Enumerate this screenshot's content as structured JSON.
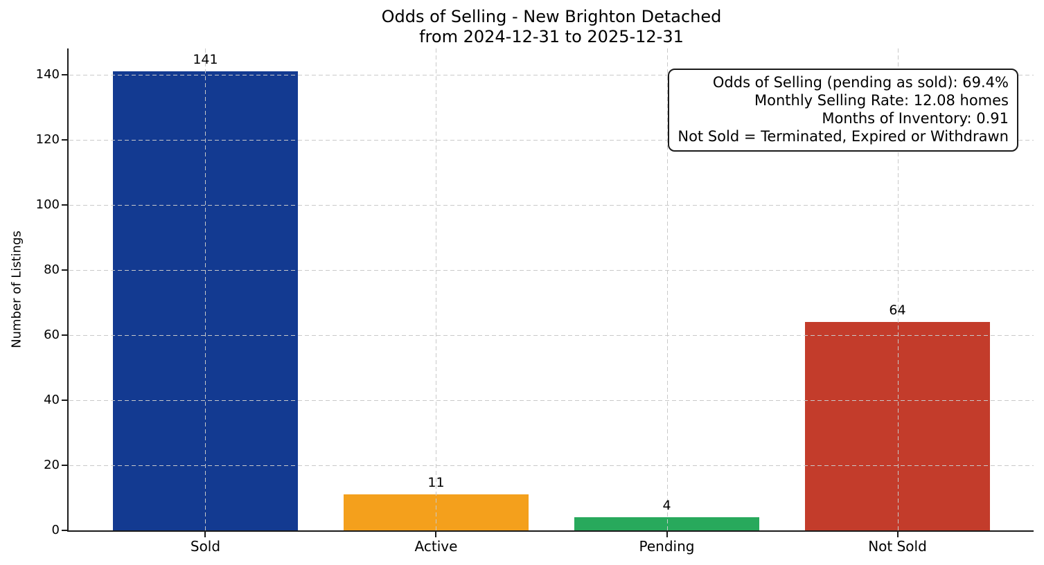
{
  "figure": {
    "background": "#ffffff",
    "spine_color": "#1a1a1a",
    "grid_color": "#c9c9c9",
    "text_color": "#000000"
  },
  "chart_data": {
    "type": "bar",
    "title": "Odds of Selling - New Brighton Detached",
    "subtitle": "from 2024-12-31 to 2025-12-31",
    "categories": [
      "Sold",
      "Active",
      "Pending",
      "Not Sold"
    ],
    "values": [
      141,
      11,
      4,
      64
    ],
    "bar_colors": [
      "#133a91",
      "#f4a01c",
      "#28a95c",
      "#c33c2b"
    ],
    "xlabel": "",
    "ylabel": "Number of Listings",
    "ylim": [
      0,
      148
    ],
    "yticks": [
      0,
      20,
      40,
      60,
      80,
      100,
      120,
      140
    ],
    "grid": true,
    "grid_style": "dashed",
    "bar_width_fraction": 0.8,
    "annotation_lines": [
      "Odds of Selling (pending as sold): 69.4%",
      "Monthly Selling Rate: 12.08 homes",
      "Months of Inventory: 0.91",
      "Not Sold = Terminated, Expired or Withdrawn"
    ]
  }
}
